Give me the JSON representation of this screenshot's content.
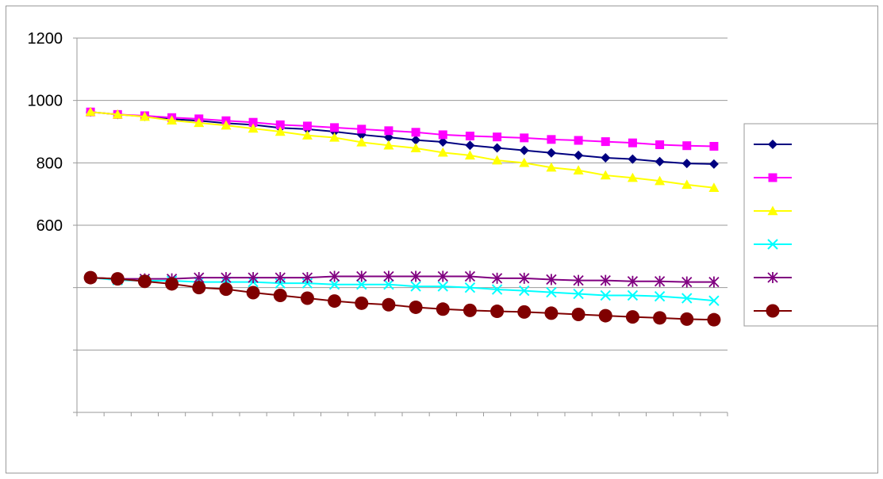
{
  "chart_data": {
    "type": "line",
    "title": "",
    "xlabel": "",
    "ylabel": "",
    "ylim": [
      0,
      1200
    ],
    "y_ticks": [
      0,
      200,
      400,
      600,
      800,
      1000,
      1200
    ],
    "y_tick_labels": [
      "",
      "",
      "",
      "600",
      "800",
      "1000",
      "1200"
    ],
    "x_count": 24,
    "grid": "horizontal",
    "legend_position": "right",
    "series": [
      {
        "color": "#000080",
        "marker": "diamond",
        "values": [
          963,
          955,
          949,
          940,
          935,
          927,
          922,
          912,
          908,
          900,
          890,
          882,
          873,
          867,
          856,
          848,
          840,
          832,
          824,
          816,
          812,
          804,
          798,
          796
        ]
      },
      {
        "color": "#ff00ff",
        "marker": "square",
        "values": [
          963,
          955,
          951,
          945,
          941,
          935,
          930,
          922,
          918,
          913,
          908,
          903,
          898,
          890,
          886,
          883,
          880,
          875,
          872,
          868,
          864,
          858,
          855,
          853
        ]
      },
      {
        "color": "#ffff00",
        "marker": "triangle",
        "values": [
          963,
          955,
          948,
          936,
          928,
          920,
          910,
          900,
          888,
          881,
          866,
          856,
          847,
          833,
          824,
          808,
          800,
          785,
          776,
          760,
          752,
          742,
          730,
          720
        ]
      },
      {
        "color": "#00ffff",
        "marker": "x",
        "values": [
          432,
          424,
          422,
          422,
          418,
          418,
          418,
          414,
          414,
          410,
          410,
          410,
          404,
          404,
          400,
          394,
          390,
          385,
          380,
          375,
          375,
          372,
          366,
          358
        ]
      },
      {
        "color": "#800080",
        "marker": "star",
        "values": [
          432,
          428,
          428,
          428,
          432,
          432,
          432,
          432,
          432,
          436,
          436,
          436,
          436,
          436,
          436,
          430,
          430,
          426,
          423,
          423,
          420,
          420,
          418,
          418
        ]
      },
      {
        "color": "#800000",
        "marker": "circle",
        "values": [
          432,
          428,
          420,
          412,
          400,
          395,
          384,
          375,
          366,
          357,
          350,
          345,
          337,
          331,
          327,
          324,
          322,
          318,
          314,
          310,
          306,
          303,
          299,
          297
        ]
      }
    ]
  }
}
